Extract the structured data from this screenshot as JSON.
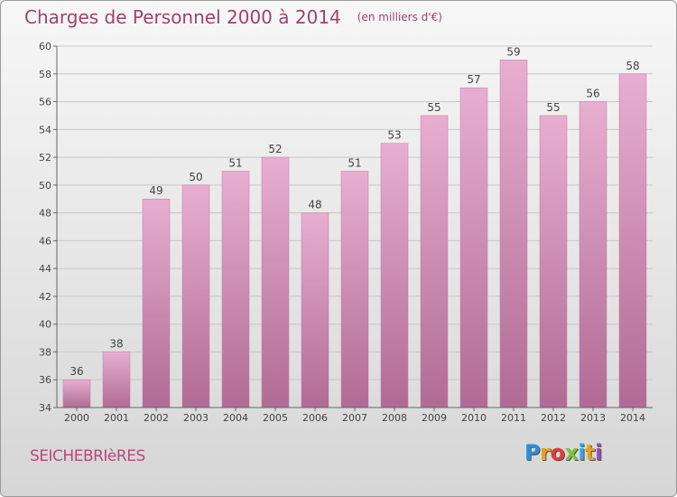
{
  "title": "Charges de Personnel 2000 à 2014",
  "subtitle": "(en milliers d'€)",
  "commune": "SEICHEBRIèRES",
  "logo": {
    "letters": [
      "P",
      "r",
      "o",
      "x",
      "i",
      "t",
      "i"
    ],
    "colors": [
      "#2a8fd6",
      "#e8a020",
      "#e23c3c",
      "#7fc040",
      "#3aa0e0",
      "#e8a020",
      "#8e50b8"
    ]
  },
  "colors": {
    "bar_top": "#e8aed0",
    "bar_bottom": "#b06b94",
    "title": "#a0426d",
    "grid": "#c8c8c8"
  },
  "chart_data": {
    "type": "bar",
    "categories": [
      "2000",
      "2001",
      "2002",
      "2003",
      "2004",
      "2005",
      "2006",
      "2007",
      "2008",
      "2009",
      "2010",
      "2011",
      "2012",
      "2013",
      "2014"
    ],
    "values": [
      36,
      38,
      49,
      50,
      51,
      52,
      48,
      51,
      53,
      55,
      57,
      59,
      55,
      56,
      58
    ],
    "ylim": [
      34,
      60
    ],
    "yticks": [
      34,
      36,
      38,
      40,
      42,
      44,
      46,
      48,
      50,
      52,
      54,
      56,
      58,
      60
    ],
    "grid": true
  }
}
